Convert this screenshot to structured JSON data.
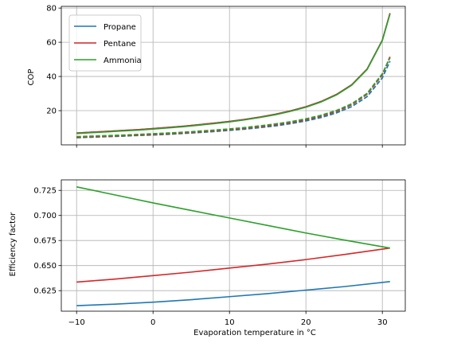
{
  "chart_data": [
    {
      "type": "line",
      "ylabel": "COP",
      "xlim": [
        -12,
        33
      ],
      "ylim": [
        0,
        81
      ],
      "grid": true,
      "legend": "top-left",
      "yticks": [
        "20",
        "40",
        "60",
        "80"
      ],
      "x": [
        -10,
        -8,
        -6,
        -4,
        -2,
        0,
        2,
        4,
        6,
        8,
        10,
        12,
        14,
        16,
        18,
        20,
        22,
        24,
        26,
        28,
        30,
        31
      ],
      "series": [
        {
          "name": "Propane",
          "color": "#1f77b4",
          "style": "solid",
          "values": [
            6.9,
            7.4,
            7.9,
            8.4,
            8.9,
            9.5,
            10.2,
            10.9,
            11.8,
            12.7,
            13.7,
            14.9,
            16.3,
            17.9,
            19.9,
            22.3,
            25.4,
            29.5,
            35.2,
            44.3,
            61.3,
            77.0
          ]
        },
        {
          "name": "Pentane",
          "color": "#d62728",
          "style": "solid",
          "values": [
            6.9,
            7.4,
            7.9,
            8.4,
            8.9,
            9.5,
            10.2,
            10.9,
            11.8,
            12.7,
            13.7,
            14.9,
            16.3,
            17.9,
            19.9,
            22.3,
            25.4,
            29.5,
            35.2,
            44.3,
            61.3,
            77.0
          ]
        },
        {
          "name": "Ammonia",
          "color": "#2ca02c",
          "style": "solid",
          "values": [
            6.6,
            7.1,
            7.6,
            8.1,
            8.6,
            9.2,
            9.9,
            10.6,
            11.5,
            12.4,
            13.4,
            14.6,
            16.0,
            17.6,
            19.6,
            22.0,
            25.1,
            29.2,
            34.9,
            44.0,
            61.0,
            76.5
          ]
        },
        {
          "name": "",
          "color": "#1f77b4",
          "style": "dashed",
          "values": [
            4.2,
            4.5,
            4.8,
            5.1,
            5.5,
            5.8,
            6.2,
            6.7,
            7.2,
            7.8,
            8.5,
            9.2,
            10.1,
            11.1,
            12.4,
            14.0,
            16.0,
            18.7,
            22.4,
            28.2,
            39.2,
            49.0
          ]
        },
        {
          "name": "",
          "color": "#d62728",
          "style": "dashed",
          "values": [
            4.4,
            4.7,
            5.0,
            5.4,
            5.7,
            6.1,
            6.5,
            7.0,
            7.6,
            8.2,
            8.9,
            9.7,
            10.6,
            11.7,
            13.0,
            14.7,
            16.8,
            19.6,
            23.5,
            29.6,
            41.0,
            51.5
          ]
        },
        {
          "name": "",
          "color": "#2ca02c",
          "style": "dashed",
          "values": [
            4.8,
            5.1,
            5.4,
            5.7,
            6.1,
            6.5,
            6.9,
            7.4,
            8.0,
            8.6,
            9.3,
            10.1,
            11.1,
            12.2,
            13.5,
            15.2,
            17.3,
            20.1,
            24.0,
            30.1,
            41.6,
            51.0
          ]
        }
      ]
    },
    {
      "type": "line",
      "xlabel": "Evaporation temperature in °C",
      "ylabel": "Efficiency factor",
      "xlim": [
        -12,
        33
      ],
      "ylim": [
        0.6045,
        0.7355
      ],
      "grid": true,
      "xticks": [
        "−10",
        "0",
        "10",
        "20",
        "30"
      ],
      "yticks": [
        "0.625",
        "0.650",
        "0.675",
        "0.700",
        "0.725"
      ],
      "x": [
        -10,
        -5,
        0,
        5,
        10,
        15,
        20,
        25,
        31
      ],
      "series": [
        {
          "name": "Propane",
          "color": "#1f77b4",
          "style": "solid",
          "values": [
            0.61,
            0.6115,
            0.6135,
            0.616,
            0.619,
            0.622,
            0.6255,
            0.629,
            0.634
          ]
        },
        {
          "name": "Pentane",
          "color": "#d62728",
          "style": "solid",
          "values": [
            0.6335,
            0.6365,
            0.64,
            0.6435,
            0.6475,
            0.6515,
            0.656,
            0.661,
            0.6675
          ]
        },
        {
          "name": "Ammonia",
          "color": "#2ca02c",
          "style": "solid",
          "values": [
            0.7285,
            0.7205,
            0.7125,
            0.705,
            0.6975,
            0.69,
            0.6825,
            0.6755,
            0.6675
          ]
        }
      ]
    }
  ]
}
